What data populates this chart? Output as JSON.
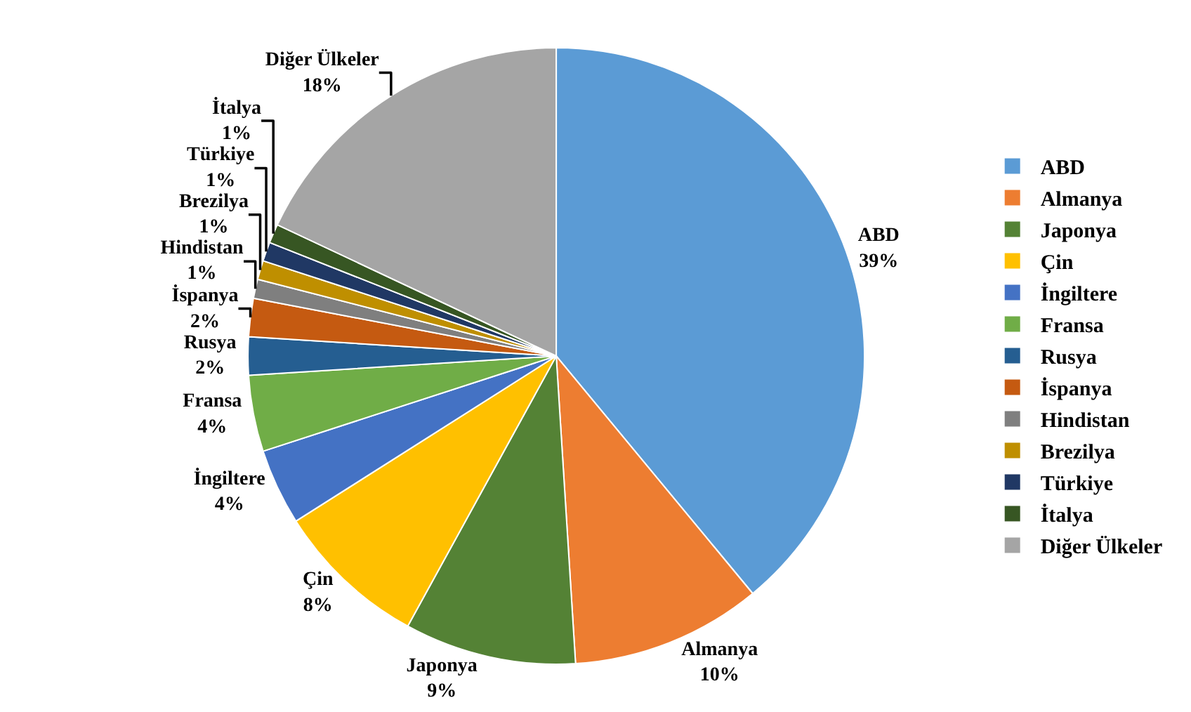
{
  "chart_data": {
    "type": "pie",
    "categories": [
      "ABD",
      "Almanya",
      "Japonya",
      "Çin",
      "İngiltere",
      "Fransa",
      "Rusya",
      "İspanya",
      "Hindistan",
      "Brezilya",
      "Türkiye",
      "İtalya",
      "Diğer Ülkeler"
    ],
    "values": [
      39,
      10,
      9,
      8,
      4,
      4,
      2,
      2,
      1,
      1,
      1,
      1,
      18
    ],
    "colors": [
      "#5b9bd5",
      "#ed7d31",
      "#548235",
      "#ffc000",
      "#4472c4",
      "#70ad47",
      "#255e91",
      "#c55a11",
      "#7f7f7f",
      "#bf8f00",
      "#203864",
      "#375623",
      "#a5a5a5"
    ],
    "value_labels": [
      "39%",
      "10%",
      "9%",
      "8%",
      "4%",
      "4%",
      "2%",
      "2%",
      "1%",
      "1%",
      "1%",
      "1%",
      "18%"
    ],
    "legend": "right"
  }
}
